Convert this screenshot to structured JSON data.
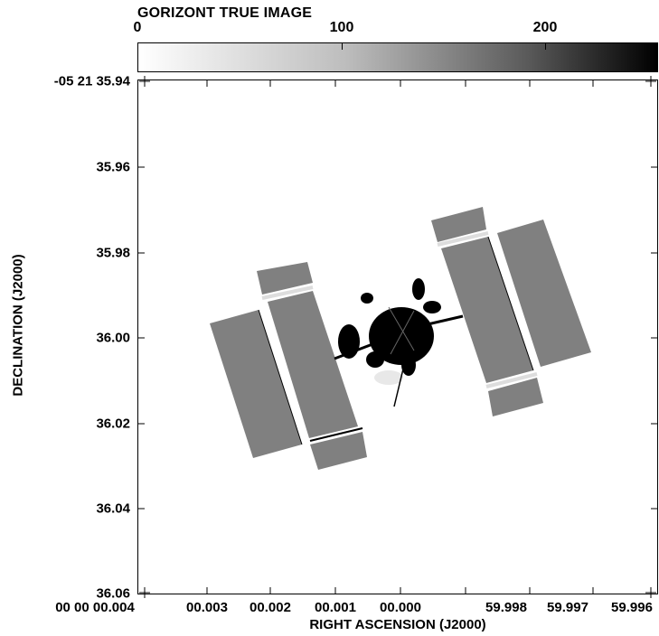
{
  "title": "GORIZONT TRUE IMAGE",
  "colorbar": {
    "ticks": [
      "0",
      "100",
      "200"
    ],
    "range": [
      0,
      255
    ],
    "colors": {
      "low": "#ffffff",
      "high": "#000000"
    }
  },
  "axes": {
    "ylabel": "DECLINATION (J2000)",
    "xlabel": "RIGHT ASCENSION (J2000)",
    "yticks": [
      "-05 21 35.94",
      "35.96",
      "35.98",
      "36.00",
      "36.02",
      "36.04",
      "36.06"
    ],
    "xticks": [
      "00 00 00.004",
      "00.003",
      "00.002",
      "00.001",
      "00.000",
      "59.998",
      "59.997",
      "59.996"
    ]
  },
  "image": {
    "subject": "satellite",
    "panel_color": "#808080",
    "body_color": "#000000"
  }
}
